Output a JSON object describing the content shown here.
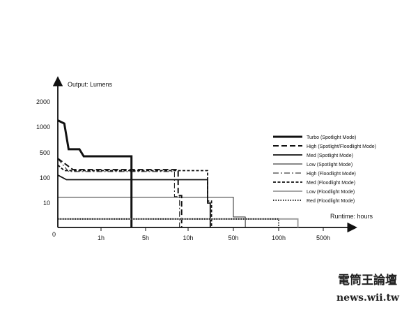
{
  "chart_data": {
    "type": "line",
    "title": "",
    "ylabel": "Output: Lumens",
    "xlabel": "Runtime: hours",
    "origin_label": "0",
    "y_ticks": [
      {
        "label": "2000",
        "value": 2000
      },
      {
        "label": "1000",
        "value": 1000
      },
      {
        "label": "500",
        "value": 500
      },
      {
        "label": "100",
        "value": 100
      },
      {
        "label": "10",
        "value": 10
      }
    ],
    "x_ticks": [
      {
        "label": "1h",
        "value": 1
      },
      {
        "label": "5h",
        "value": 5
      },
      {
        "label": "10h",
        "value": 10
      },
      {
        "label": "50h",
        "value": 50
      },
      {
        "label": "100h",
        "value": 100
      },
      {
        "label": "500h",
        "value": 500
      }
    ],
    "legend_position": "right",
    "series": [
      {
        "name": "Turbo (Spotlight Mode)",
        "color": "#111111",
        "style": "solid-thick",
        "points": [
          [
            0,
            1200
          ],
          [
            0.15,
            1100
          ],
          [
            0.25,
            550
          ],
          [
            0.5,
            550
          ],
          [
            0.6,
            400
          ],
          [
            1,
            400
          ],
          [
            3,
            400
          ],
          [
            3,
            2
          ]
        ]
      },
      {
        "name": "High (Spotlight/Floodlight Mode)",
        "color": "#111111",
        "style": "dash-long",
        "points": [
          [
            0,
            350
          ],
          [
            0.35,
            170
          ],
          [
            8.5,
            170
          ],
          [
            8.5,
            20
          ],
          [
            9,
            20
          ],
          [
            9,
            2
          ]
        ]
      },
      {
        "name": "Med (Spotlight Mode)",
        "color": "#111111",
        "style": "solid",
        "points": [
          [
            0,
            120
          ],
          [
            0.2,
            85
          ],
          [
            20,
            85
          ],
          [
            20,
            10
          ],
          [
            22,
            10
          ],
          [
            22,
            2
          ]
        ]
      },
      {
        "name": "Low (Spotlight Mode)",
        "color": "#111111",
        "style": "solid-thin",
        "points": [
          [
            0,
            17
          ],
          [
            50,
            17
          ],
          [
            50,
            4
          ],
          [
            60,
            4
          ],
          [
            60,
            2
          ]
        ]
      },
      {
        "name": "High (Floodlight Mode)",
        "color": "#111111",
        "style": "dash-dot",
        "points": [
          [
            0,
            340
          ],
          [
            0.25,
            150
          ],
          [
            8,
            150
          ],
          [
            8,
            18
          ],
          [
            8.7,
            18
          ],
          [
            8.7,
            2
          ]
        ]
      },
      {
        "name": "Med (Floodlight Mode)",
        "color": "#111111",
        "style": "dash-short",
        "points": [
          [
            0,
            230
          ],
          [
            0.15,
            160
          ],
          [
            20,
            160
          ],
          [
            20,
            12
          ],
          [
            23,
            12
          ],
          [
            23,
            2
          ]
        ]
      },
      {
        "name": "Low (Floodlight Mode)",
        "color": "#999999",
        "style": "solid-grey",
        "points": [
          [
            0,
            3.5
          ],
          [
            200,
            3.5
          ],
          [
            200,
            2
          ]
        ]
      },
      {
        "name": "Red (Floodlight Mode)",
        "color": "#111111",
        "style": "dotted",
        "points": [
          [
            0,
            3.5
          ],
          [
            100,
            3.5
          ],
          [
            100,
            2
          ]
        ]
      }
    ]
  },
  "watermark": {
    "line1": "電筒王論壇",
    "line2": "news.wii.tw"
  }
}
